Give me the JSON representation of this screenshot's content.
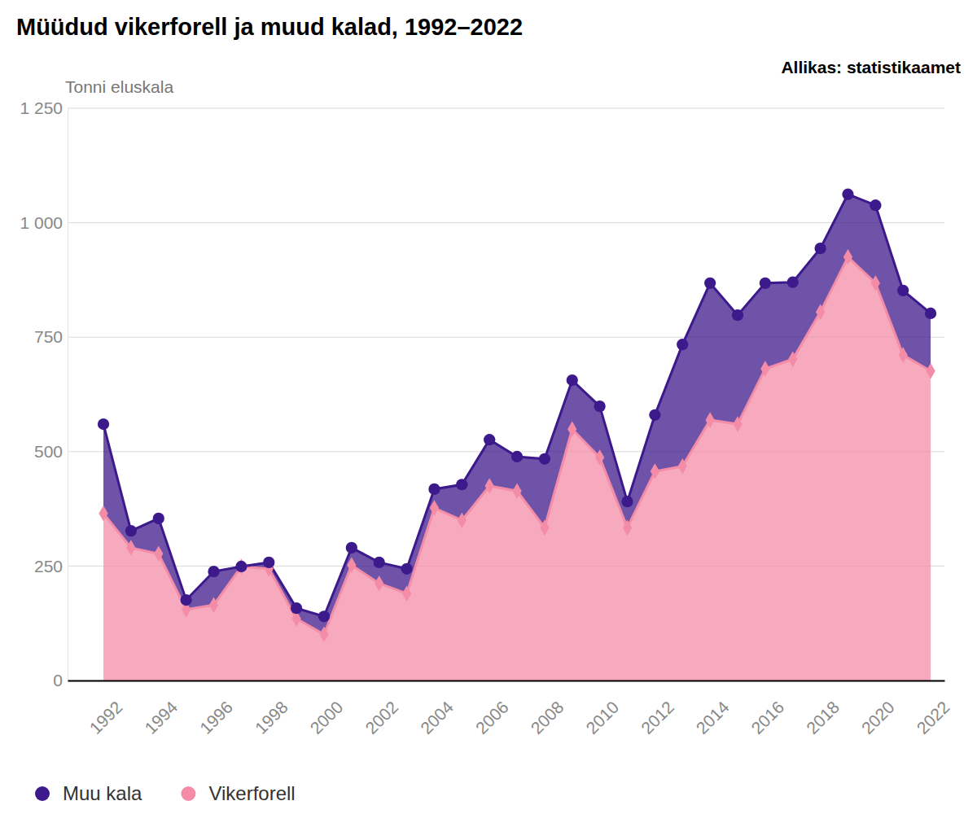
{
  "chart_data": {
    "type": "area",
    "stacked": true,
    "title": "Müüdud vikerforell ja muud kalad, 1992–2022",
    "source": "Allikas: statistikaamet",
    "ylabel": "Tonni eluskala",
    "x": [
      1992,
      1993,
      1994,
      1995,
      1996,
      1997,
      1998,
      1999,
      2000,
      2001,
      2002,
      2003,
      2004,
      2005,
      2006,
      2007,
      2008,
      2009,
      2010,
      2011,
      2012,
      2013,
      2014,
      2015,
      2016,
      2017,
      2018,
      2019,
      2020,
      2021,
      2022
    ],
    "series": [
      {
        "name": "Muu kala",
        "color": "#3d1a8c",
        "marker": "circle",
        "values": [
          195,
          37,
          77,
          21,
          73,
          0,
          14,
          23,
          39,
          38,
          46,
          54,
          41,
          78,
          101,
          75,
          150,
          107,
          112,
          57,
          123,
          266,
          299,
          238,
          187,
          168,
          139,
          137,
          170,
          141,
          126
        ]
      },
      {
        "name": "Vikerforell",
        "color": "#f48ca8",
        "marker": "diamond",
        "values": [
          365,
          290,
          277,
          155,
          165,
          249,
          244,
          135,
          101,
          252,
          212,
          190,
          377,
          350,
          425,
          414,
          334,
          549,
          487,
          334,
          457,
          468,
          569,
          560,
          681,
          702,
          805,
          925,
          868,
          711,
          676
        ]
      }
    ],
    "xlim": [
      1990.7,
      2022.5
    ],
    "xticks": [
      1992,
      1994,
      1996,
      1998,
      2000,
      2002,
      2004,
      2006,
      2008,
      2010,
      2012,
      2014,
      2016,
      2018,
      2020,
      2022
    ],
    "ylim": [
      0,
      1250
    ],
    "yticks": [
      0,
      250,
      500,
      750,
      {
        "value": 1000,
        "label": "1 000"
      },
      {
        "value": 1250,
        "label": "1 250"
      }
    ],
    "grid": true,
    "legend": "bottom-left"
  }
}
